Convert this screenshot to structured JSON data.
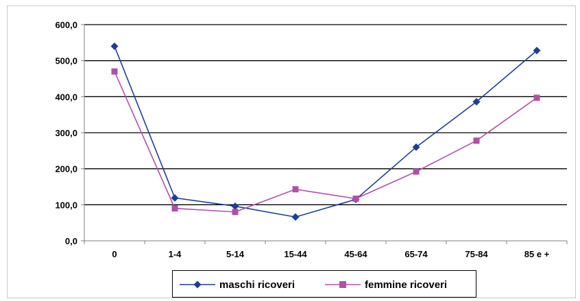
{
  "chart_data": {
    "type": "line",
    "categories": [
      "0",
      "1-4",
      "5-14",
      "15-44",
      "45-64",
      "65-74",
      "75-84",
      "85 e +"
    ],
    "series": [
      {
        "name": "maschi ricoveri",
        "values": [
          540,
          119,
          96,
          66,
          115,
          260,
          386,
          528
        ],
        "color": "#1f3c9c",
        "marker": "diamond"
      },
      {
        "name": "femmine ricoveri",
        "values": [
          470,
          90,
          80,
          143,
          117,
          192,
          278,
          397
        ],
        "color": "#b050a8",
        "marker": "square"
      }
    ],
    "y_ticks": [
      "0,0",
      "100,0",
      "200,0",
      "300,0",
      "400,0",
      "500,0",
      "600,0"
    ],
    "ylim": [
      0,
      600
    ],
    "grid": "horizontal",
    "legend_position": "bottom"
  },
  "legend": {
    "male_label": "maschi ricoveri",
    "female_label": "femmine ricoveri"
  }
}
